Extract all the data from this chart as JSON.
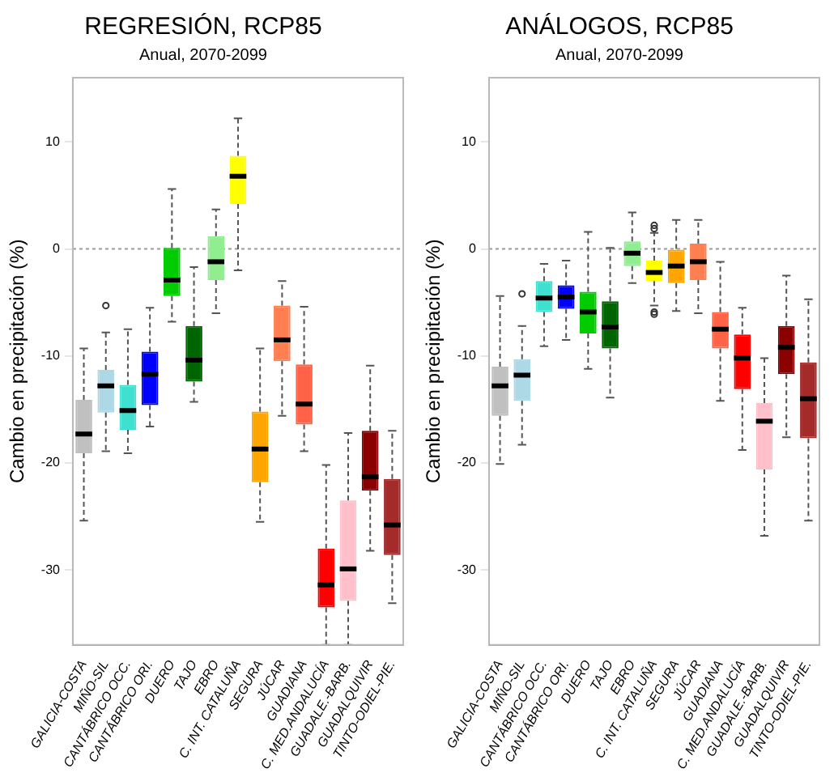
{
  "chart_data": [
    {
      "type": "box",
      "title": "REGRESIÓN, RCP85",
      "subtitle": "Anual, 2070-2099",
      "ylabel": "Cambio en precipitación (%)",
      "categories": [
        "GALICIA-COSTA",
        "MIÑO-SIL",
        "CANTÁBRICO OCC.",
        "CANTÁBRICO ORI.",
        "DUERO",
        "TAJO",
        "EBRO",
        "C. INT. CATALUÑA",
        "SEGURA",
        "JÚCAR",
        "GUADIANA",
        "C. MED.ANDALUCÍA",
        "GUADALE.-BARB.",
        "GUADALQUIVIR",
        "TINTO-ODIEL-PIE."
      ],
      "colors": [
        "#c0c0c0",
        "#add8e6",
        "#40e0d0",
        "#0000ff",
        "#00cc00",
        "#006400",
        "#90ee90",
        "#ffff00",
        "#ffa500",
        "#ff7f50",
        "#ff6347",
        "#ff0000",
        "#ffc0cb",
        "#8b0000",
        "#a52a2a"
      ],
      "boxes": [
        {
          "low": -25.4,
          "q1": -19.1,
          "median": -17.3,
          "q3": -14.1,
          "high": -9.3
        },
        {
          "low": -18.9,
          "q1": -15.3,
          "median": -12.8,
          "q3": -11.3,
          "high": -7.8,
          "outliers": [
            -5.3
          ]
        },
        {
          "low": -19.1,
          "q1": -16.9,
          "median": -15.1,
          "q3": -12.7,
          "high": -7.5
        },
        {
          "low": -16.6,
          "q1": -14.6,
          "median": -11.7,
          "q3": -9.6,
          "high": -5.5
        },
        {
          "low": -6.8,
          "q1": -4.4,
          "median": -2.9,
          "q3": 0.1,
          "high": 5.6
        },
        {
          "low": -14.3,
          "q1": -12.4,
          "median": -10.4,
          "q3": -7.2,
          "high": -1.7
        },
        {
          "low": -6.0,
          "q1": -2.9,
          "median": -1.2,
          "q3": 1.2,
          "high": 3.7
        },
        {
          "low": -2.0,
          "q1": 4.2,
          "median": 6.8,
          "q3": 8.7,
          "high": 12.2
        },
        {
          "low": -25.5,
          "q1": -21.8,
          "median": -18.7,
          "q3": -15.2,
          "high": -9.3
        },
        {
          "low": -15.6,
          "q1": -10.5,
          "median": -8.5,
          "q3": -5.3,
          "high": -3.0
        },
        {
          "low": -18.9,
          "q1": -16.4,
          "median": -14.5,
          "q3": -10.8,
          "high": -5.4
        },
        {
          "low": -37,
          "q1": -33.5,
          "median": -31.4,
          "q3": -28.0,
          "high": -20.2
        },
        {
          "low": -37,
          "q1": -32.9,
          "median": -29.9,
          "q3": -23.5,
          "high": -17.2
        },
        {
          "low": -28.2,
          "q1": -22.6,
          "median": -21.3,
          "q3": -17.0,
          "high": -10.9
        },
        {
          "low": -33.1,
          "q1": -28.6,
          "median": -25.8,
          "q3": -21.5,
          "high": -17.0
        }
      ],
      "ylim": [
        -37,
        16
      ],
      "yticks": [
        -30,
        -20,
        -10,
        0,
        10
      ],
      "ref_lines": [
        {
          "axis": "y",
          "value": 0,
          "color": "#999999",
          "line_style": "dotted"
        }
      ],
      "grid": false,
      "legend": false
    },
    {
      "type": "box",
      "title": "ANÁLOGOS, RCP85",
      "subtitle": "Anual, 2070-2099",
      "ylabel": "Cambio en precipitación (%)",
      "categories": [
        "GALICIA-COSTA",
        "MIÑO-SIL",
        "CANTÁBRICO OCC.",
        "CANTÁBRICO ORI.",
        "DUERO",
        "TAJO",
        "EBRO",
        "C. INT. CATALUÑA",
        "SEGURA",
        "JÚCAR",
        "GUADIANA",
        "C. MED.ANDALUCÍA",
        "GUADALE.-BARB.",
        "GUADALQUIVIR",
        "TINTO-ODIEL-PIE."
      ],
      "colors": [
        "#c0c0c0",
        "#add8e6",
        "#40e0d0",
        "#0000ff",
        "#00cc00",
        "#006400",
        "#90ee90",
        "#ffff00",
        "#ffa500",
        "#ff7f50",
        "#ff6347",
        "#ff0000",
        "#ffc0cb",
        "#8b0000",
        "#a52a2a"
      ],
      "boxes": [
        {
          "low": -20.1,
          "q1": -15.6,
          "median": -12.8,
          "q3": -11.0,
          "high": -4.4
        },
        {
          "low": -18.3,
          "q1": -14.2,
          "median": -11.8,
          "q3": -10.3,
          "high": -7.2,
          "outliers": [
            -4.2
          ]
        },
        {
          "low": -9.1,
          "q1": -5.9,
          "median": -4.6,
          "q3": -3.0,
          "high": -1.4
        },
        {
          "low": -8.5,
          "q1": -5.6,
          "median": -4.5,
          "q3": -3.4,
          "high": -1.1
        },
        {
          "low": -11.2,
          "q1": -7.9,
          "median": -5.9,
          "q3": -4.0,
          "high": 1.6
        },
        {
          "low": -13.9,
          "q1": -9.3,
          "median": -7.3,
          "q3": -4.9,
          "high": 0.1
        },
        {
          "low": -3.2,
          "q1": -1.6,
          "median": -0.4,
          "q3": 0.7,
          "high": 3.4
        },
        {
          "low": -5.3,
          "q1": -3.0,
          "median": -2.2,
          "q3": -1.1,
          "high": 1.5,
          "outliers": [
            2.2,
            1.9,
            -5.9,
            -6.1
          ]
        },
        {
          "low": -5.8,
          "q1": -3.2,
          "median": -1.6,
          "q3": 0.0,
          "high": 2.7
        },
        {
          "low": -6.0,
          "q1": -2.9,
          "median": -1.2,
          "q3": 0.5,
          "high": 2.7
        },
        {
          "low": -14.2,
          "q1": -9.3,
          "median": -7.5,
          "q3": -5.9,
          "high": -1.2
        },
        {
          "low": -18.8,
          "q1": -13.1,
          "median": -10.2,
          "q3": -8.0,
          "high": -5.5
        },
        {
          "low": -26.8,
          "q1": -20.6,
          "median": -16.1,
          "q3": -14.4,
          "high": -10.2
        },
        {
          "low": -17.6,
          "q1": -11.7,
          "median": -9.2,
          "q3": -7.2,
          "high": -2.5
        },
        {
          "low": -25.4,
          "q1": -17.7,
          "median": -14.0,
          "q3": -10.6,
          "high": -4.7
        }
      ],
      "ylim": [
        -37,
        16
      ],
      "yticks": [
        -30,
        -20,
        -10,
        0,
        10
      ],
      "ref_lines": [
        {
          "axis": "y",
          "value": 0,
          "color": "#999999",
          "line_style": "dotted"
        }
      ],
      "grid": false,
      "legend": false
    }
  ]
}
